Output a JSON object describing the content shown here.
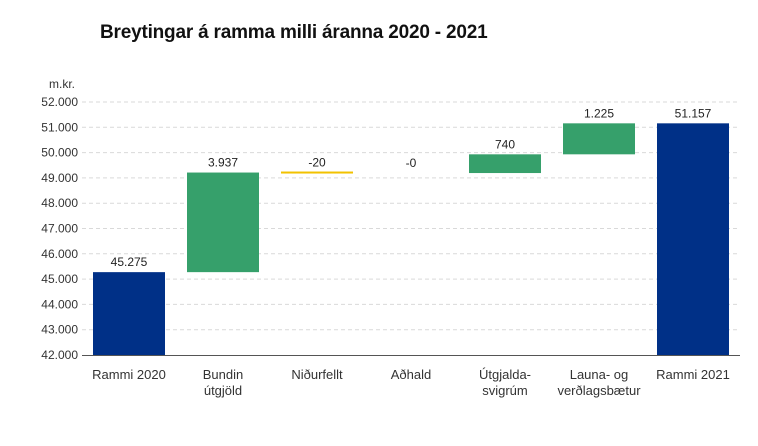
{
  "chart_data": {
    "type": "waterfall",
    "title": "Breytingar á ramma milli áranna 2020 - 2021",
    "ylabel": "m.kr.",
    "ylim": [
      42000,
      52000
    ],
    "yticks": [
      42000,
      43000,
      44000,
      45000,
      46000,
      47000,
      48000,
      49000,
      50000,
      51000,
      52000
    ],
    "ytick_labels": [
      "42.000",
      "43.000",
      "44.000",
      "45.000",
      "46.000",
      "47.000",
      "48.000",
      "49.000",
      "50.000",
      "51.000",
      "52.000"
    ],
    "grid": true,
    "legend": "none",
    "steps": [
      {
        "category": [
          "Rammi 2020"
        ],
        "kind": "total",
        "value": 45275,
        "label": "45.275",
        "color": "#003087"
      },
      {
        "category": [
          "Bundin",
          "útgjöld"
        ],
        "kind": "delta",
        "value": 3937,
        "label": "3.937",
        "color": "#36a06b"
      },
      {
        "category": [
          "Niðurfellt"
        ],
        "kind": "delta",
        "value": -20,
        "label": "-20",
        "color": "#f2c200"
      },
      {
        "category": [
          "Aðhald"
        ],
        "kind": "delta",
        "value": 0,
        "label": "-0",
        "color": "#f2c200"
      },
      {
        "category": [
          "Útgjalda-",
          "svigrúm"
        ],
        "kind": "delta",
        "value": 740,
        "label": "740",
        "color": "#36a06b"
      },
      {
        "category": [
          "Launa- og",
          "verðlagsbætur"
        ],
        "kind": "delta",
        "value": 1225,
        "label": "1.225",
        "color": "#36a06b"
      },
      {
        "category": [
          "Rammi 2021"
        ],
        "kind": "total",
        "value": 51157,
        "label": "51.157",
        "color": "#003087"
      }
    ]
  }
}
